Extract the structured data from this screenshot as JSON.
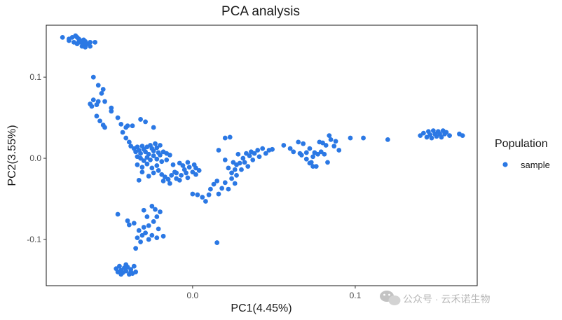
{
  "chart_data": {
    "type": "scatter",
    "title": "PCA analysis",
    "xlabel": "PC1(4.45%)",
    "ylabel": "PC2(3.55%)",
    "xlim": [
      -0.09,
      0.175
    ],
    "ylim": [
      -0.157,
      0.164
    ],
    "x_ticks": [
      0.0,
      0.1
    ],
    "x_tick_labels": [
      "0.0",
      "0.1"
    ],
    "y_ticks": [
      -0.1,
      0.0,
      0.1
    ],
    "y_tick_labels": [
      "-0.1",
      "0.0",
      "0.1"
    ],
    "grid": false,
    "legend": {
      "title": "Population",
      "placement": "right",
      "entries": [
        "sample"
      ]
    },
    "marker_color": "#2b78e4",
    "series": [
      {
        "name": "sample",
        "points": [
          [
            -0.08,
            0.149
          ],
          [
            -0.076,
            0.147
          ],
          [
            -0.074,
            0.149
          ],
          [
            -0.072,
            0.151
          ],
          [
            -0.071,
            0.149
          ],
          [
            -0.07,
            0.147
          ],
          [
            -0.069,
            0.145
          ],
          [
            -0.07,
            0.143
          ],
          [
            -0.068,
            0.142
          ],
          [
            -0.067,
            0.146
          ],
          [
            -0.066,
            0.144
          ],
          [
            -0.065,
            0.141
          ],
          [
            -0.063,
            0.143
          ],
          [
            -0.076,
            0.145
          ],
          [
            -0.073,
            0.143
          ],
          [
            -0.071,
            0.141
          ],
          [
            -0.068,
            0.138
          ],
          [
            -0.067,
            0.14
          ],
          [
            -0.066,
            0.137
          ],
          [
            -0.063,
            0.138
          ],
          [
            -0.06,
            0.143
          ],
          [
            -0.061,
            0.1
          ],
          [
            -0.058,
            0.09
          ],
          [
            -0.055,
            0.085
          ],
          [
            -0.056,
            0.08
          ],
          [
            -0.061,
            0.072
          ],
          [
            -0.063,
            0.067
          ],
          [
            -0.062,
            0.064
          ],
          [
            -0.059,
            0.066
          ],
          [
            -0.058,
            0.07
          ],
          [
            -0.054,
            0.07
          ],
          [
            -0.059,
            0.052
          ],
          [
            -0.057,
            0.046
          ],
          [
            -0.055,
            0.041
          ],
          [
            -0.054,
            0.038
          ],
          [
            -0.05,
            0.062
          ],
          [
            -0.05,
            0.058
          ],
          [
            -0.046,
            0.05
          ],
          [
            -0.044,
            0.042
          ],
          [
            -0.041,
            0.038
          ],
          [
            -0.04,
            0.04
          ],
          [
            -0.043,
            0.032
          ],
          [
            -0.041,
            0.025
          ],
          [
            -0.039,
            0.02
          ],
          [
            -0.037,
            0.04
          ],
          [
            -0.032,
            0.048
          ],
          [
            -0.029,
            0.045
          ],
          [
            -0.024,
            0.038
          ],
          [
            -0.038,
            0.015
          ],
          [
            -0.036,
            0.012
          ],
          [
            -0.035,
            0.008
          ],
          [
            -0.034,
            0.014
          ],
          [
            -0.033,
            0.01
          ],
          [
            -0.032,
            0.006
          ],
          [
            -0.031,
            0.015
          ],
          [
            -0.03,
            0.011
          ],
          [
            -0.029,
            0.008
          ],
          [
            -0.028,
            0.014
          ],
          [
            -0.027,
            0.005
          ],
          [
            -0.026,
            0.016
          ],
          [
            -0.025,
            0.012
          ],
          [
            -0.024,
            0.009
          ],
          [
            -0.023,
            0.018
          ],
          [
            -0.022,
            0.013
          ],
          [
            -0.021,
            0.007
          ],
          [
            -0.02,
            0.016
          ],
          [
            -0.034,
            0.002
          ],
          [
            -0.032,
            0.0
          ],
          [
            -0.03,
            -0.003
          ],
          [
            -0.028,
            0.001
          ],
          [
            -0.026,
            -0.002
          ],
          [
            -0.024,
            0.003
          ],
          [
            -0.022,
            -0.001
          ],
          [
            -0.02,
            0.004
          ],
          [
            -0.018,
            0.008
          ],
          [
            -0.016,
            0.006
          ],
          [
            -0.034,
            -0.008
          ],
          [
            -0.031,
            -0.011
          ],
          [
            -0.028,
            -0.007
          ],
          [
            -0.025,
            -0.012
          ],
          [
            -0.022,
            -0.009
          ],
          [
            -0.019,
            -0.004
          ],
          [
            -0.016,
            -0.002
          ],
          [
            -0.014,
            0.004
          ],
          [
            -0.033,
            -0.027
          ],
          [
            -0.031,
            -0.017
          ],
          [
            -0.027,
            -0.022
          ],
          [
            -0.024,
            -0.018
          ],
          [
            -0.021,
            -0.015
          ],
          [
            -0.019,
            -0.02
          ],
          [
            -0.017,
            -0.023
          ],
          [
            -0.015,
            -0.026
          ],
          [
            -0.013,
            -0.021
          ],
          [
            -0.011,
            -0.017
          ],
          [
            -0.01,
            -0.025
          ],
          [
            -0.008,
            -0.027
          ],
          [
            -0.007,
            -0.021
          ],
          [
            -0.005,
            -0.014
          ],
          [
            -0.004,
            -0.018
          ],
          [
            -0.003,
            -0.024
          ],
          [
            -0.002,
            -0.011
          ],
          [
            0.0,
            -0.017
          ],
          [
            0.002,
            -0.02
          ],
          [
            -0.018,
            -0.028
          ],
          [
            -0.014,
            -0.031
          ],
          [
            -0.01,
            -0.018
          ],
          [
            -0.006,
            -0.009
          ],
          [
            -0.003,
            -0.005
          ],
          [
            0.001,
            -0.008
          ],
          [
            -0.012,
            -0.008
          ],
          [
            -0.008,
            -0.006
          ],
          [
            0.002,
            -0.012
          ],
          [
            0.004,
            -0.015
          ],
          [
            0.0,
            -0.044
          ],
          [
            0.003,
            -0.045
          ],
          [
            0.006,
            -0.048
          ],
          [
            0.008,
            -0.053
          ],
          [
            0.01,
            -0.045
          ],
          [
            0.011,
            -0.038
          ],
          [
            0.013,
            -0.032
          ],
          [
            0.015,
            -0.028
          ],
          [
            0.016,
            -0.044
          ],
          [
            0.018,
            -0.037
          ],
          [
            0.02,
            -0.03
          ],
          [
            0.022,
            -0.038
          ],
          [
            0.024,
            -0.025
          ],
          [
            0.026,
            -0.031
          ],
          [
            0.027,
            -0.021
          ],
          [
            0.015,
            -0.104
          ],
          [
            0.016,
            0.01
          ],
          [
            0.02,
            0.025
          ],
          [
            0.023,
            0.026
          ],
          [
            0.02,
            -0.002
          ],
          [
            0.022,
            -0.012
          ],
          [
            0.024,
            -0.018
          ],
          [
            0.025,
            -0.005
          ],
          [
            0.026,
            -0.014
          ],
          [
            0.027,
            -0.008
          ],
          [
            0.028,
            0.005
          ],
          [
            0.029,
            -0.006
          ],
          [
            0.03,
            -0.014
          ],
          [
            0.031,
            0.0
          ],
          [
            0.032,
            -0.005
          ],
          [
            0.033,
            0.006
          ],
          [
            0.034,
            -0.01
          ],
          [
            0.035,
            0.003
          ],
          [
            0.036,
            0.008
          ],
          [
            0.037,
            -0.002
          ],
          [
            0.038,
            0.006
          ],
          [
            0.04,
            0.01
          ],
          [
            0.041,
            0.002
          ],
          [
            0.043,
            0.012
          ],
          [
            0.045,
            0.006
          ],
          [
            0.047,
            0.01
          ],
          [
            0.049,
            0.011
          ],
          [
            0.056,
            0.016
          ],
          [
            0.06,
            0.012
          ],
          [
            0.062,
            0.008
          ],
          [
            0.066,
            0.006
          ],
          [
            0.067,
            0.004
          ],
          [
            0.07,
            0.007
          ],
          [
            0.072,
            0.012
          ],
          [
            0.073,
            -0.005
          ],
          [
            0.074,
            0.002
          ],
          [
            0.075,
            0.007
          ],
          [
            0.076,
            -0.01
          ],
          [
            0.077,
            0.005
          ],
          [
            0.078,
            0.02
          ],
          [
            0.079,
            0.008
          ],
          [
            0.08,
            0.019
          ],
          [
            0.081,
            0.005
          ],
          [
            0.082,
            0.016
          ],
          [
            0.083,
            -0.005
          ],
          [
            0.084,
            0.028
          ],
          [
            0.085,
            0.023
          ],
          [
            0.087,
            0.015
          ],
          [
            0.088,
            0.021
          ],
          [
            0.09,
            0.01
          ],
          [
            0.065,
            0.02
          ],
          [
            0.068,
            0.018
          ],
          [
            0.07,
            -0.001
          ],
          [
            0.072,
            -0.006
          ],
          [
            0.074,
            -0.01
          ],
          [
            0.097,
            0.025
          ],
          [
            0.105,
            0.025
          ],
          [
            0.12,
            0.023
          ],
          [
            0.14,
            0.028
          ],
          [
            0.142,
            0.031
          ],
          [
            0.144,
            0.026
          ],
          [
            0.145,
            0.033
          ],
          [
            0.146,
            0.029
          ],
          [
            0.147,
            0.025
          ],
          [
            0.148,
            0.034
          ],
          [
            0.149,
            0.03
          ],
          [
            0.15,
            0.027
          ],
          [
            0.151,
            0.033
          ],
          [
            0.152,
            0.03
          ],
          [
            0.153,
            0.026
          ],
          [
            0.154,
            0.034
          ],
          [
            0.155,
            0.03
          ],
          [
            0.156,
            0.032
          ],
          [
            0.158,
            0.028
          ],
          [
            0.164,
            0.03
          ],
          [
            0.166,
            0.028
          ],
          [
            -0.046,
            -0.069
          ],
          [
            -0.04,
            -0.077
          ],
          [
            -0.039,
            -0.082
          ],
          [
            -0.036,
            -0.08
          ],
          [
            -0.03,
            -0.064
          ],
          [
            -0.028,
            -0.072
          ],
          [
            -0.027,
            -0.083
          ],
          [
            -0.025,
            -0.059
          ],
          [
            -0.024,
            -0.078
          ],
          [
            -0.023,
            -0.063
          ],
          [
            -0.022,
            -0.072
          ],
          [
            -0.021,
            -0.087
          ],
          [
            -0.02,
            -0.066
          ],
          [
            -0.03,
            -0.085
          ],
          [
            -0.031,
            -0.095
          ],
          [
            -0.033,
            -0.089
          ],
          [
            -0.034,
            -0.098
          ],
          [
            -0.032,
            -0.103
          ],
          [
            -0.035,
            -0.111
          ],
          [
            -0.029,
            -0.092
          ],
          [
            -0.027,
            -0.1
          ],
          [
            -0.025,
            -0.095
          ],
          [
            -0.022,
            -0.098
          ],
          [
            -0.018,
            -0.096
          ],
          [
            -0.047,
            -0.136
          ],
          [
            -0.046,
            -0.14
          ],
          [
            -0.045,
            -0.133
          ],
          [
            -0.044,
            -0.138
          ],
          [
            -0.043,
            -0.141
          ],
          [
            -0.042,
            -0.135
          ],
          [
            -0.041,
            -0.139
          ],
          [
            -0.04,
            -0.134
          ],
          [
            -0.039,
            -0.143
          ],
          [
            -0.038,
            -0.137
          ],
          [
            -0.037,
            -0.142
          ],
          [
            -0.036,
            -0.133
          ],
          [
            -0.035,
            -0.14
          ],
          [
            -0.044,
            -0.143
          ],
          [
            -0.041,
            -0.131
          ],
          [
            -0.038,
            -0.14
          ]
        ]
      }
    ]
  },
  "watermark": "公众号 · 云禾诺生物"
}
